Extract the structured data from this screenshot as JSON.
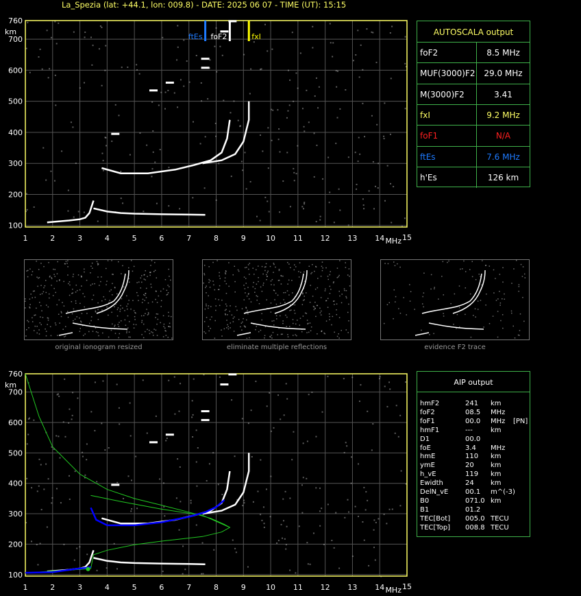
{
  "header": {
    "title": "La_Spezia (lat: +44.1, lon: 009.8) - DATE: 2025 06 07 - TIME (UT): 15:15"
  },
  "colors": {
    "axis": "#ffff66",
    "ftEs": "#1e7bff",
    "fxI": "#ffff00",
    "foF1": "#ff2020",
    "panel_border": "#3fb24a",
    "profile": "#22cc22",
    "trace_fit": "#0000ff"
  },
  "autoscala": {
    "title": "AUTOSCALA output",
    "rows": [
      {
        "key": "foF2",
        "value": "8.5 MHz",
        "color": "#ffffff"
      },
      {
        "key": "MUF(3000)F2",
        "value": "29.0 MHz",
        "color": "#ffffff"
      },
      {
        "key": "M(3000)F2",
        "value": "3.41",
        "color": "#ffffff"
      },
      {
        "key": "fxI",
        "value": "9.2 MHz",
        "color": "#ffff66"
      },
      {
        "key": "foF1",
        "value": "N/A",
        "color": "#ff2020"
      },
      {
        "key": "ftEs",
        "value": "7.6 MHz",
        "color": "#1e7bff"
      },
      {
        "key": "h'Es",
        "value": "126     km",
        "color": "#ffffff"
      }
    ]
  },
  "thumbnails": [
    {
      "caption": "original ionogram resized"
    },
    {
      "caption": "eliminate multiple reflections"
    },
    {
      "caption": "evidence F2 trace"
    }
  ],
  "aip": {
    "title": "AIP output",
    "rows": [
      {
        "k": "hmF2",
        "v": "241",
        "u": "km",
        "x": ""
      },
      {
        "k": "foF2",
        "v": "08.5",
        "u": "MHz",
        "x": ""
      },
      {
        "k": "foF1",
        "v": "00.0",
        "u": "MHz",
        "x": "[PN]"
      },
      {
        "k": "hmF1",
        "v": "---",
        "u": "km",
        "x": ""
      },
      {
        "k": "D1",
        "v": "00.0",
        "u": "",
        "x": ""
      },
      {
        "k": "foE",
        "v": "3.4",
        "u": "MHz",
        "x": ""
      },
      {
        "k": "hmE",
        "v": "110",
        "u": "km",
        "x": ""
      },
      {
        "k": "ymE",
        "v": "20",
        "u": "km",
        "x": ""
      },
      {
        "k": "h_vE",
        "v": "119",
        "u": "km",
        "x": ""
      },
      {
        "k": "Ewidth",
        "v": "24",
        "u": "km",
        "x": ""
      },
      {
        "k": "DelN_vE",
        "v": "00.1",
        "u": "m^(-3)",
        "x": ""
      },
      {
        "k": "B0",
        "v": "071.0",
        "u": "km",
        "x": ""
      },
      {
        "k": "B1",
        "v": "01.2",
        "u": "",
        "x": ""
      },
      {
        "k": "TEC[Bot]",
        "v": "005.0",
        "u": "TECU",
        "x": ""
      },
      {
        "k": "TEC[Top]",
        "v": "008.8",
        "u": "TECU",
        "x": ""
      }
    ]
  },
  "chart_data": [
    {
      "type": "scatter",
      "name": "autoscala_ionogram",
      "xlabel": "MHz",
      "ylabel": "km",
      "xlim": [
        1,
        15
      ],
      "ylim": [
        95,
        760
      ],
      "xticks": [
        1,
        2,
        3,
        4,
        5,
        6,
        7,
        8,
        9,
        10,
        11,
        12,
        13,
        14,
        15
      ],
      "yticks": [
        100,
        200,
        300,
        400,
        500,
        600,
        700,
        760
      ],
      "grid": true,
      "markers": [
        {
          "name": "ftEs",
          "x": 7.6,
          "color": "#1e7bff"
        },
        {
          "name": "foF2",
          "x": 8.5,
          "color": "#ffffff"
        },
        {
          "name": "fxI",
          "x": 9.2,
          "color": "#ffff00"
        }
      ],
      "traces": [
        {
          "name": "E trace",
          "points": [
            [
              1.8,
              110
            ],
            [
              2.2,
              113
            ],
            [
              2.6,
              116
            ],
            [
              3.0,
              120
            ],
            [
              3.2,
              125
            ],
            [
              3.35,
              140
            ],
            [
              3.5,
              180
            ]
          ]
        },
        {
          "name": "Es trace",
          "points": [
            [
              3.5,
              155
            ],
            [
              4.0,
              145
            ],
            [
              4.5,
              140
            ],
            [
              5.0,
              138
            ],
            [
              6.0,
              136
            ],
            [
              7.0,
              135
            ],
            [
              7.6,
              134
            ]
          ]
        },
        {
          "name": "F2 o-trace",
          "points": [
            [
              3.8,
              285
            ],
            [
              4.5,
              268
            ],
            [
              5.5,
              268
            ],
            [
              6.5,
              280
            ],
            [
              7.2,
              295
            ],
            [
              7.8,
              310
            ],
            [
              8.2,
              335
            ],
            [
              8.4,
              380
            ],
            [
              8.5,
              440
            ]
          ]
        },
        {
          "name": "F2 x-trace",
          "points": [
            [
              7.5,
              300
            ],
            [
              8.2,
              310
            ],
            [
              8.7,
              330
            ],
            [
              9.0,
              370
            ],
            [
              9.2,
              440
            ],
            [
              9.2,
              500
            ]
          ]
        },
        {
          "name": "echo patches",
          "points": [
            [
              4.3,
              395
            ],
            [
              5.7,
              535
            ],
            [
              6.3,
              560
            ],
            [
              7.6,
              608
            ],
            [
              8.3,
              725
            ],
            [
              8.6,
              758
            ],
            [
              7.6,
              637
            ]
          ]
        }
      ]
    },
    {
      "type": "line",
      "name": "aip_profile",
      "xlabel": "MHz",
      "ylabel": "km",
      "xlim": [
        1,
        15
      ],
      "ylim": [
        95,
        760
      ],
      "xticks": [
        1,
        2,
        3,
        4,
        5,
        6,
        7,
        8,
        9,
        10,
        11,
        12,
        13,
        14,
        15
      ],
      "yticks": [
        100,
        200,
        300,
        400,
        500,
        600,
        700,
        760
      ],
      "grid": true,
      "series": [
        {
          "name": "electron density profile",
          "color": "#22cc22",
          "points": [
            [
              1.0,
              760
            ],
            [
              1.5,
              620
            ],
            [
              2.0,
              520
            ],
            [
              3.0,
              430
            ],
            [
              4.0,
              380
            ],
            [
              5.0,
              350
            ],
            [
              6.0,
              328
            ],
            [
              7.0,
              305
            ],
            [
              7.8,
              285
            ],
            [
              8.3,
              265
            ],
            [
              8.5,
              255
            ],
            [
              8.2,
              240
            ],
            [
              7.5,
              225
            ],
            [
              6.0,
              210
            ],
            [
              5.0,
              198
            ],
            [
              4.0,
              180
            ],
            [
              3.5,
              165
            ],
            [
              3.4,
              120
            ],
            [
              3.0,
              117
            ],
            [
              2.0,
              112
            ],
            [
              1.0,
              105
            ]
          ]
        },
        {
          "name": "profile top branch",
          "color": "#22cc22",
          "points": [
            [
              3.4,
              360
            ],
            [
              4.5,
              340
            ],
            [
              6.0,
              315
            ],
            [
              7.5,
              295
            ],
            [
              8.5,
              255
            ]
          ]
        },
        {
          "name": "fitted trace",
          "color": "#0000ff",
          "points": [
            [
              3.4,
              320
            ],
            [
              3.6,
              280
            ],
            [
              4.0,
              262
            ],
            [
              5.0,
              262
            ],
            [
              6.0,
              272
            ],
            [
              7.0,
              290
            ],
            [
              7.6,
              305
            ],
            [
              8.0,
              322
            ],
            [
              8.3,
              345
            ]
          ]
        },
        {
          "name": "fitted E trace",
          "color": "#0000ff",
          "points": [
            [
              1.0,
              106
            ],
            [
              2.0,
              108
            ],
            [
              2.8,
              118
            ],
            [
              3.2,
              122
            ],
            [
              3.4,
              125
            ]
          ]
        }
      ],
      "markers": [
        {
          "name": "hmE marker",
          "x": 3.3,
          "y": 118,
          "color": "#22cc22"
        }
      ]
    }
  ]
}
